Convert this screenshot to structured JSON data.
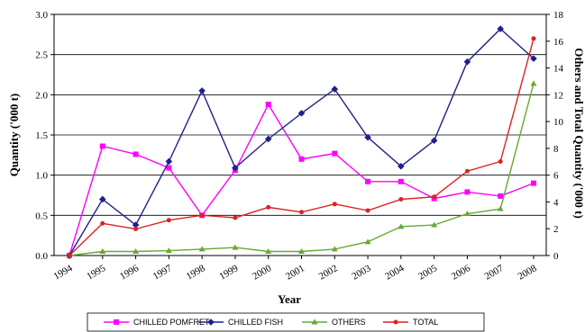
{
  "chart_data": {
    "type": "line",
    "xlabel": "Year",
    "ylabel": "Quantity ('000 t)",
    "y2label": "Others and Total Quantity ('000 t)",
    "ylim": [
      0,
      3.0
    ],
    "y2lim": [
      0,
      18
    ],
    "yticks": [
      "0.0",
      "0.5",
      "1.0",
      "1.5",
      "2.0",
      "2.5",
      "3.0"
    ],
    "y2ticks": [
      "0",
      "2",
      "4",
      "6",
      "8",
      "10",
      "12",
      "14",
      "16",
      "18"
    ],
    "grid": true,
    "legend_position": "bottom",
    "x": [
      "1994",
      "1995",
      "1996",
      "1997",
      "1998",
      "1999",
      "2000",
      "2001",
      "2002",
      "2003",
      "2004",
      "2005",
      "2006",
      "2007",
      "2008"
    ],
    "series": [
      {
        "name": "CHILLED POMFRET",
        "axis": "left",
        "color": "#ff00ff",
        "marker": "square",
        "values": [
          0.0,
          1.36,
          1.26,
          1.09,
          0.5,
          1.06,
          1.88,
          1.2,
          1.27,
          0.92,
          0.92,
          0.71,
          0.79,
          0.74,
          0.9
        ]
      },
      {
        "name": "CHILLED FISH",
        "axis": "left",
        "color": "#1f1f8f",
        "marker": "diamond",
        "values": [
          0.0,
          0.7,
          0.38,
          1.17,
          2.05,
          1.09,
          1.45,
          1.77,
          2.07,
          1.47,
          1.11,
          1.43,
          2.41,
          2.82,
          2.45
        ]
      },
      {
        "name": "OTHERS",
        "axis": "right",
        "color": "#66aa33",
        "marker": "triangle",
        "values": [
          0.0,
          0.3,
          0.3,
          0.36,
          0.48,
          0.6,
          0.3,
          0.3,
          0.48,
          1.02,
          2.16,
          2.28,
          3.12,
          3.48,
          12.84
        ]
      },
      {
        "name": "TOTAL",
        "axis": "right",
        "color": "#dd2222",
        "marker": "circle",
        "values": [
          0.0,
          2.4,
          1.98,
          2.64,
          3.0,
          2.82,
          3.6,
          3.24,
          3.84,
          3.36,
          4.2,
          4.38,
          6.3,
          7.02,
          16.2
        ]
      }
    ]
  }
}
